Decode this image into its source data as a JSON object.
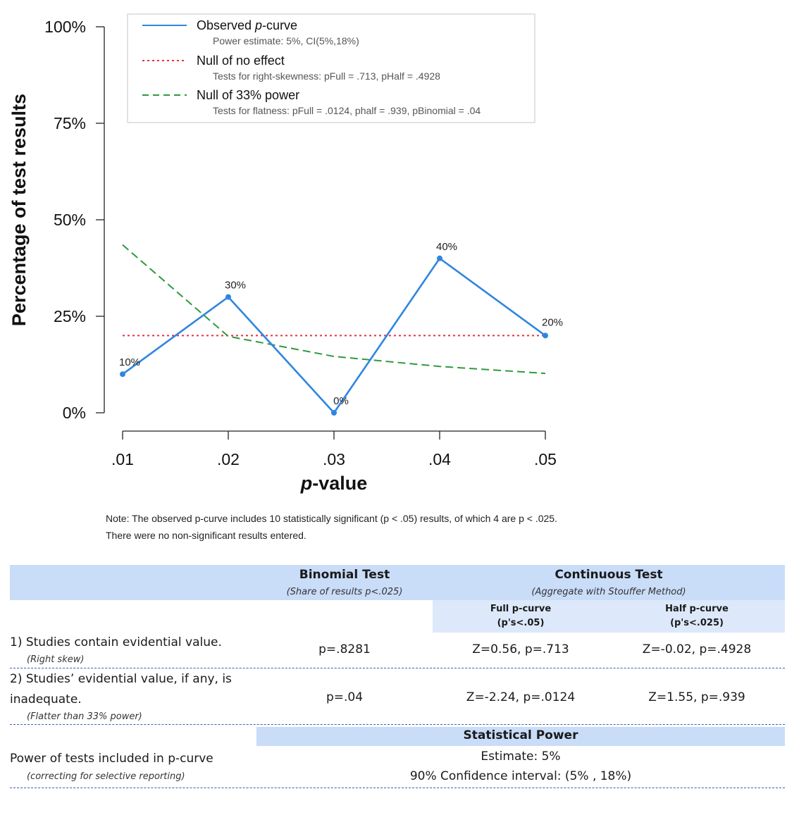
{
  "chart_data": {
    "type": "line",
    "x": [
      0.01,
      0.02,
      0.03,
      0.04,
      0.05
    ],
    "x_tick_labels": [
      ".01",
      ".02",
      ".03",
      ".04",
      ".05"
    ],
    "y_tick_labels": [
      "0%",
      "25%",
      "50%",
      "75%",
      "100%"
    ],
    "ylim": [
      0,
      100
    ],
    "xlabel_italic": "p",
    "xlabel_rest": "-value",
    "ylabel": "Percentage of test results",
    "series": [
      {
        "name": "Observed p-curve",
        "values": [
          10,
          30,
          0,
          40,
          20
        ],
        "color": "#2f86e0",
        "style": "solid",
        "data_labels": [
          "10%",
          "30%",
          "0%",
          "40%",
          "20%"
        ]
      },
      {
        "name": "Null of no effect",
        "values": [
          20,
          20,
          20,
          20,
          20
        ],
        "color": "#e8303a",
        "style": "dotted"
      },
      {
        "name": "Null of 33% power",
        "values": [
          43.5,
          19.8,
          14.6,
          12.0,
          10.2
        ],
        "color": "#2e9a3e",
        "style": "dashed"
      }
    ],
    "legend": {
      "placement": "top",
      "items": [
        {
          "main_pre": "Observed ",
          "main_italic": "p",
          "main_post": "-curve",
          "sub": "Power estimate: 5%, CI(5%,18%)"
        },
        {
          "main_pre": "Null of no effect",
          "main_italic": "",
          "main_post": "",
          "sub": "Tests for right-skewness: pFull = .713,  pHalf = .4928"
        },
        {
          "main_pre": "Null of 33% power",
          "main_italic": "",
          "main_post": "",
          "sub": "Tests for flatness: pFull = .0124,  phalf = .939,  pBinomial = .04"
        }
      ]
    },
    "grid": false
  },
  "note": {
    "line1": "Note: The observed p-curve includes 10 statistically significant (p < .05) results, of which 4 are p < .025.",
    "line2": "There were no non-significant results entered."
  },
  "table": {
    "binomial_title": "Binomial Test",
    "binomial_sub": "(Share of results p<.025)",
    "continuous_title": "Continuous Test",
    "continuous_sub": "(Aggregate with Stouffer Method)",
    "full_title": "Full p-curve",
    "full_sub": "(p's<.05)",
    "half_title": "Half p-curve",
    "half_sub": "(p's<.025)",
    "row1_label": "1) Studies contain evidential value.",
    "row1_sub": "(Right skew)",
    "row1_binomial": "p=.8281",
    "row1_full": "Z=0.56, p=.713",
    "row1_half": "Z=-0.02, p=.4928",
    "row2_label_line1": "2) Studies’ evidential value, if any, is",
    "row2_label_line2": "inadequate.",
    "row2_sub": "(Flatter than 33% power)",
    "row2_binomial": "p=.04",
    "row2_full": "Z=-2.24, p=.0124",
    "row2_half": "Z=1.55, p=.939",
    "power_title": "Statistical Power",
    "row3_label": "Power of tests included in p-curve",
    "row3_sub": "(correcting for selective reporting)",
    "row3_estimate": "Estimate: 5%",
    "row3_ci": "90% Confidence interval: (5% , 18%)"
  }
}
